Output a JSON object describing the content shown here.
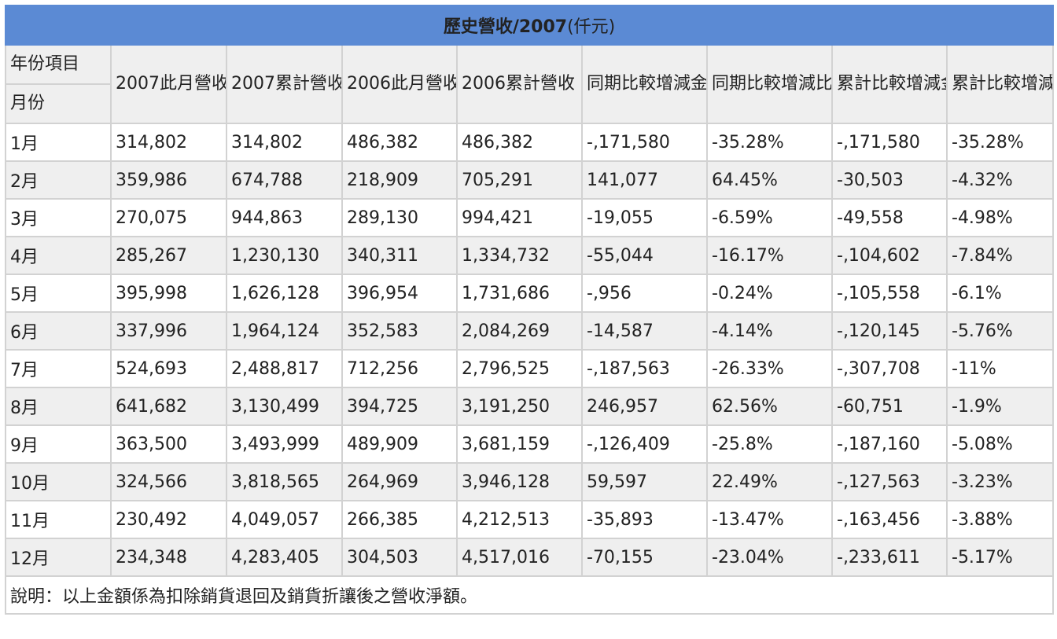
{
  "title_main": "歷史營收/2007",
  "title_unit": "(仟元)",
  "corner_top": "年份項目",
  "corner_bottom": "月份",
  "headers": [
    "2007此月營收",
    "2007累計營收",
    "2006此月營收",
    "2006累計營收",
    "同期比較增減金額",
    "同期比較增減比例",
    "累計比較增減金額",
    "累計比較增減比例"
  ],
  "rows": [
    {
      "month": "1月",
      "cells": [
        "314,802",
        "314,802",
        "486,382",
        "486,382",
        "-,171,580",
        "-35.28%",
        "-,171,580",
        "-35.28%"
      ]
    },
    {
      "month": "2月",
      "cells": [
        "359,986",
        "674,788",
        "218,909",
        "705,291",
        "141,077",
        "64.45%",
        "-30,503",
        "-4.32%"
      ]
    },
    {
      "month": "3月",
      "cells": [
        "270,075",
        "944,863",
        "289,130",
        "994,421",
        "-19,055",
        "-6.59%",
        "-49,558",
        "-4.98%"
      ]
    },
    {
      "month": "4月",
      "cells": [
        "285,267",
        "1,230,130",
        "340,311",
        "1,334,732",
        "-55,044",
        "-16.17%",
        "-,104,602",
        "-7.84%"
      ]
    },
    {
      "month": "5月",
      "cells": [
        "395,998",
        "1,626,128",
        "396,954",
        "1,731,686",
        "-,956",
        "-0.24%",
        "-,105,558",
        "-6.1%"
      ]
    },
    {
      "month": "6月",
      "cells": [
        "337,996",
        "1,964,124",
        "352,583",
        "2,084,269",
        "-14,587",
        "-4.14%",
        "-,120,145",
        "-5.76%"
      ]
    },
    {
      "month": "7月",
      "cells": [
        "524,693",
        "2,488,817",
        "712,256",
        "2,796,525",
        "-,187,563",
        "-26.33%",
        "-,307,708",
        "-11%"
      ]
    },
    {
      "month": "8月",
      "cells": [
        "641,682",
        "3,130,499",
        "394,725",
        "3,191,250",
        "246,957",
        "62.56%",
        "-60,751",
        "-1.9%"
      ]
    },
    {
      "month": "9月",
      "cells": [
        "363,500",
        "3,493,999",
        "489,909",
        "3,681,159",
        "-,126,409",
        "-25.8%",
        "-,187,160",
        "-5.08%"
      ]
    },
    {
      "month": "10月",
      "cells": [
        "324,566",
        "3,818,565",
        "264,969",
        "3,946,128",
        "59,597",
        "22.49%",
        "-,127,563",
        "-3.23%"
      ]
    },
    {
      "month": "11月",
      "cells": [
        "230,492",
        "4,049,057",
        "266,385",
        "4,212,513",
        "-35,893",
        "-13.47%",
        "-,163,456",
        "-3.88%"
      ]
    },
    {
      "month": "12月",
      "cells": [
        "234,348",
        "4,283,405",
        "304,503",
        "4,517,016",
        "-70,155",
        "-23.04%",
        "-,233,611",
        "-5.17%"
      ]
    }
  ],
  "note": "說明：以上金額係為扣除銷貨退回及銷貨折讓後之營收淨額。",
  "colors": {
    "header_bg": "#5b8ad4",
    "negative": "#e8121e",
    "positive": "#1a62b8",
    "stripe": "#efefef"
  }
}
